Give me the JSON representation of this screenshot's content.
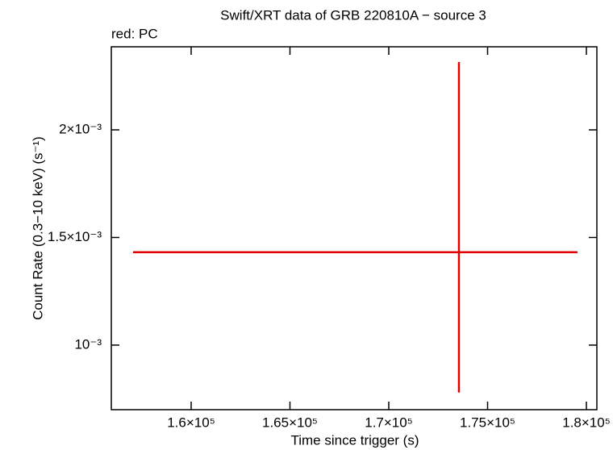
{
  "chart_data": {
    "type": "errorbar",
    "title": "Swift/XRT data of GRB 220810A − source 3",
    "subtitle": "red: PC",
    "xlabel": "Time since trigger (s)",
    "ylabel": "Count Rate (0.3−10 keV) (s⁻¹)",
    "series": [
      {
        "name": "PC",
        "color": "#e00000",
        "x": [
          173551
        ],
        "xerr_minus": [
          16490
        ],
        "xerr_plus": [
          6000
        ],
        "values": [
          0.0014315
        ],
        "yerr_minus": [
          0.000652
        ],
        "yerr_plus": [
          0.000884
        ]
      }
    ],
    "xlim": [
      155960,
      180530
    ],
    "xticks": [
      {
        "value": 160000,
        "label": "1.6×10⁵"
      },
      {
        "value": 165000,
        "label": "1.65×10⁵"
      },
      {
        "value": 170000,
        "label": "1.7×10⁵"
      },
      {
        "value": 175000,
        "label": "1.75×10⁵"
      },
      {
        "value": 180000,
        "label": "1.8×10⁵"
      }
    ],
    "ylim": [
      0.0007,
      0.002386
    ],
    "yticks": [
      {
        "value": 0.001,
        "label": "10⁻³"
      },
      {
        "value": 0.0015,
        "label": "1.5×10⁻³"
      },
      {
        "value": 0.002,
        "label": "2×10⁻³"
      }
    ],
    "grid": false
  }
}
